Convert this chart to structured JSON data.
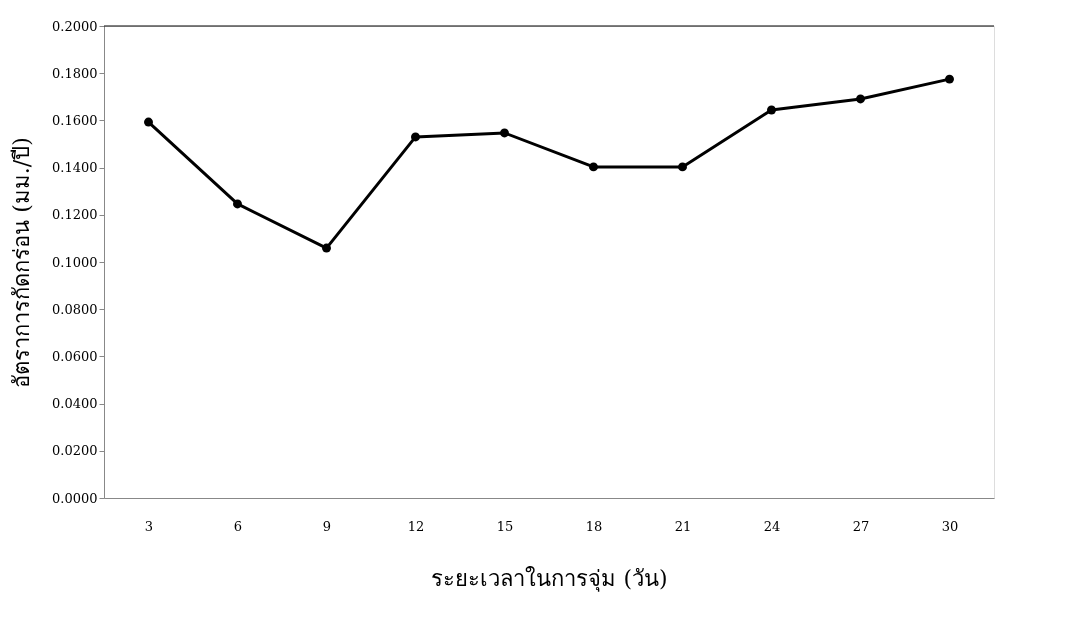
{
  "chart_data": {
    "type": "line",
    "xlabel": "ระยะเวลาในการจุ่ม (วัน)",
    "ylabel": "อัตราการกัดกร่อน (มม./ปี)",
    "categories": [
      "3",
      "6",
      "9",
      "12",
      "15",
      "18",
      "21",
      "24",
      "27",
      "30"
    ],
    "series": [
      {
        "color": "#000000",
        "values": [
          0.1593,
          0.1246,
          0.1059,
          0.153,
          0.1547,
          0.1403,
          0.1403,
          0.1644,
          0.1691,
          0.1775
        ]
      }
    ],
    "ylim": [
      0,
      0.2
    ],
    "yticks": [
      {
        "value": 0,
        "label": "0.0000"
      },
      {
        "value": 0.02,
        "label": "0.0200"
      },
      {
        "value": 0.04,
        "label": "0.0400"
      },
      {
        "value": 0.06,
        "label": "0.0600"
      },
      {
        "value": 0.08,
        "label": "0.0800"
      },
      {
        "value": 0.1,
        "label": "0.1000"
      },
      {
        "value": 0.12,
        "label": "0.1200"
      },
      {
        "value": 0.14,
        "label": "0.1400"
      },
      {
        "value": 0.16,
        "label": "0.1600"
      },
      {
        "value": 0.18,
        "label": "0.1800"
      },
      {
        "value": 0.2,
        "label": "0.2000"
      }
    ],
    "grid": false,
    "marker": "circle",
    "line_style": "solid"
  }
}
